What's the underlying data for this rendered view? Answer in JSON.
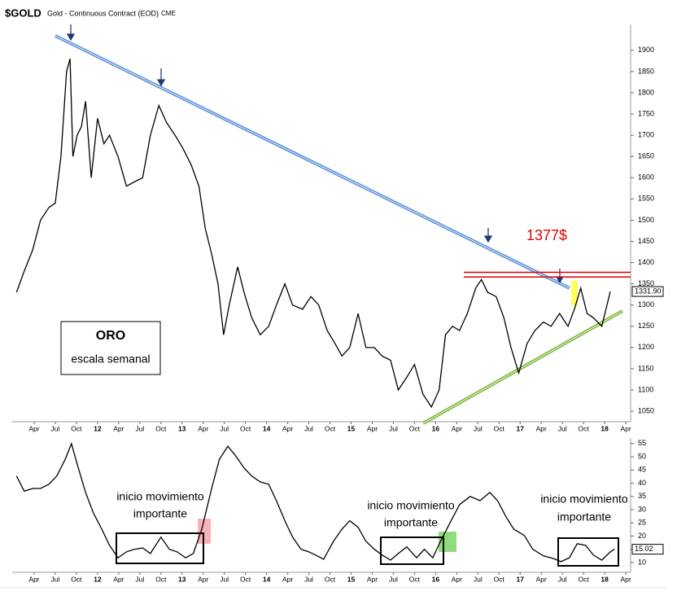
{
  "chart_data": [
    {
      "type": "line",
      "title": "$GOLD",
      "subtitle": "Gold - Continuous Contract (EOD)",
      "exchange": "CME",
      "x": [
        0.5,
        1.6,
        2.8,
        3.9,
        5.1,
        6.0,
        6.8,
        7.6,
        8.1,
        8.5,
        9.1,
        9.7,
        10.3,
        11.1,
        12.0,
        12.9,
        13.7,
        14.9,
        16.1,
        17.2,
        18.4,
        19.5,
        20.7,
        21.8,
        23.0,
        24.1,
        25.3,
        26.4,
        27.3,
        28.2,
        29.1,
        29.9,
        30.7,
        31.9,
        32.8,
        33.9,
        35.1,
        36.3,
        37.4,
        38.6,
        39.7,
        41.1,
        42.3,
        43.4,
        44.6,
        45.7,
        46.7,
        47.8,
        49.0,
        50.1,
        51.3,
        52.4,
        53.6,
        54.7,
        55.9,
        57.0,
        58.2,
        59.4,
        60.5,
        61.4,
        62.4,
        63.4,
        64.5,
        65.7,
        66.5,
        67.4,
        68.6,
        69.7,
        70.7,
        71.8,
        73.0,
        74.1,
        75.3,
        76.4,
        77.6,
        78.8,
        79.7,
        80.6,
        81.5,
        82.4,
        83.6,
        84.8
      ],
      "values": [
        1330,
        1380,
        1430,
        1500,
        1530,
        1540,
        1650,
        1850,
        1880,
        1650,
        1700,
        1720,
        1780,
        1600,
        1740,
        1680,
        1700,
        1650,
        1580,
        1590,
        1600,
        1700,
        1770,
        1730,
        1700,
        1670,
        1630,
        1580,
        1480,
        1420,
        1350,
        1230,
        1300,
        1390,
        1330,
        1270,
        1230,
        1250,
        1300,
        1350,
        1300,
        1290,
        1320,
        1300,
        1240,
        1210,
        1180,
        1200,
        1280,
        1200,
        1200,
        1180,
        1170,
        1100,
        1130,
        1160,
        1090,
        1060,
        1100,
        1230,
        1250,
        1240,
        1280,
        1340,
        1360,
        1330,
        1320,
        1270,
        1200,
        1140,
        1210,
        1240,
        1260,
        1250,
        1280,
        1250,
        1290,
        1340,
        1280,
        1270,
        1250,
        1331.9
      ],
      "color": "#000000",
      "last_label": "1331.90",
      "levels": [
        1377,
        1366
      ],
      "level_color": "#e00000",
      "annotation": "1377$",
      "box_title": "ORO",
      "box_subtitle": "escala semanal",
      "xlim": [
        0,
        87.8
      ],
      "ylim": [
        1031,
        1961
      ],
      "yticks": [
        1050,
        1100,
        1150,
        1200,
        1250,
        1300,
        1350,
        1400,
        1450,
        1500,
        1550,
        1600,
        1650,
        1700,
        1750,
        1800,
        1850,
        1900
      ],
      "xticks": [
        {
          "value": 3,
          "label": "Apr"
        },
        {
          "value": 6,
          "label": "Jul"
        },
        {
          "value": 9,
          "label": "Oct"
        },
        {
          "value": 12,
          "label": "12"
        },
        {
          "value": 15,
          "label": "Apr"
        },
        {
          "value": 18,
          "label": "Jul"
        },
        {
          "value": 21,
          "label": "Oct"
        },
        {
          "value": 24,
          "label": "13"
        },
        {
          "value": 27,
          "label": "Apr"
        },
        {
          "value": 30,
          "label": "Jul"
        },
        {
          "value": 33,
          "label": "Oct"
        },
        {
          "value": 36,
          "label": "14"
        },
        {
          "value": 39,
          "label": "Apr"
        },
        {
          "value": 42,
          "label": "Jul"
        },
        {
          "value": 45,
          "label": "Oct"
        },
        {
          "value": 48,
          "label": "15"
        },
        {
          "value": 51,
          "label": "Apr"
        },
        {
          "value": 54,
          "label": "Jul"
        },
        {
          "value": 57,
          "label": "Oct"
        },
        {
          "value": 60,
          "label": "16"
        },
        {
          "value": 63,
          "label": "Apr"
        },
        {
          "value": 66,
          "label": "Jul"
        },
        {
          "value": 69,
          "label": "Oct"
        },
        {
          "value": 72,
          "label": "17"
        },
        {
          "value": 75,
          "label": "Apr"
        },
        {
          "value": 78,
          "label": "Jul"
        },
        {
          "value": 81,
          "label": "Oct"
        },
        {
          "value": 84,
          "label": "18"
        },
        {
          "value": 87,
          "label": "Apr"
        }
      ]
    },
    {
      "type": "line",
      "x": [
        0.5,
        1.6,
        2.8,
        3.9,
        5.1,
        6.2,
        7.4,
        8.3,
        9.1,
        10.3,
        11.4,
        12.6,
        13.7,
        14.9,
        16.1,
        17.2,
        18.4,
        19.5,
        21.0,
        22.2,
        23.3,
        24.5,
        25.6,
        26.8,
        28.2,
        29.3,
        30.5,
        31.6,
        32.8,
        33.9,
        35.1,
        36.3,
        37.4,
        38.6,
        39.7,
        40.9,
        42.0,
        43.2,
        44.1,
        45.5,
        46.7,
        47.8,
        49.0,
        50.1,
        51.3,
        52.4,
        53.6,
        54.7,
        55.9,
        57.3,
        58.4,
        59.6,
        60.7,
        62.2,
        63.4,
        64.9,
        66.3,
        67.7,
        68.8,
        70.0,
        71.1,
        72.6,
        73.8,
        75.3,
        76.7,
        77.8,
        79.0,
        80.1,
        81.3,
        82.4,
        83.6,
        84.8,
        85.4
      ],
      "values": [
        42.7,
        37,
        38,
        38,
        39.6,
        42.7,
        49,
        55,
        47.3,
        36.5,
        28.8,
        22.6,
        16.5,
        11.8,
        14,
        15,
        15.5,
        13.4,
        19.6,
        15,
        14,
        11.8,
        13.4,
        22.6,
        38,
        49,
        54,
        50.4,
        45.8,
        42.7,
        40.5,
        39.6,
        33.4,
        25.8,
        19.6,
        15,
        14,
        12.5,
        11.2,
        18,
        22.6,
        25.8,
        23.3,
        18,
        15,
        12.8,
        10.9,
        13.4,
        15.9,
        11.8,
        15,
        11.8,
        18,
        25.8,
        31.9,
        35,
        33.4,
        36.5,
        33.4,
        27.3,
        22.6,
        20.2,
        15,
        12.5,
        11.5,
        10.3,
        11.8,
        17.1,
        16.5,
        12.8,
        10.9,
        14,
        15.02
      ],
      "color": "#000000",
      "annotations": [
        [
          "inicio movimiento",
          "importante"
        ],
        [
          "inicio movimiento",
          "importante"
        ],
        [
          "inicio movimiento",
          "importante"
        ]
      ],
      "xlim": [
        0,
        87.8
      ],
      "ylim": [
        7.2,
        56.5
      ],
      "yticks": [
        10,
        15,
        20,
        25,
        30,
        35,
        40,
        45,
        50,
        55
      ],
      "xticks": [
        {
          "value": 3,
          "label": "Apr"
        },
        {
          "value": 6,
          "label": "Jul"
        },
        {
          "value": 9,
          "label": "Oct"
        },
        {
          "value": 12,
          "label": "12"
        },
        {
          "value": 15,
          "label": "Apr"
        },
        {
          "value": 18,
          "label": "Jul"
        },
        {
          "value": 21,
          "label": "Oct"
        },
        {
          "value": 24,
          "label": "13"
        },
        {
          "value": 27,
          "label": "Apr"
        },
        {
          "value": 30,
          "label": "Jul"
        },
        {
          "value": 33,
          "label": "Oct"
        },
        {
          "value": 36,
          "label": "14"
        },
        {
          "value": 39,
          "label": "Apr"
        },
        {
          "value": 42,
          "label": "Jul"
        },
        {
          "value": 45,
          "label": "Oct"
        },
        {
          "value": 48,
          "label": "15"
        },
        {
          "value": 51,
          "label": "Apr"
        },
        {
          "value": 54,
          "label": "Jul"
        },
        {
          "value": 57,
          "label": "Oct"
        },
        {
          "value": 60,
          "label": "16"
        },
        {
          "value": 63,
          "label": "Apr"
        },
        {
          "value": 66,
          "label": "Jul"
        },
        {
          "value": 69,
          "label": "Oct"
        },
        {
          "value": 72,
          "label": "17"
        },
        {
          "value": 75,
          "label": "Apr"
        },
        {
          "value": 78,
          "label": "Jul"
        },
        {
          "value": 81,
          "label": "Oct"
        },
        {
          "value": 84,
          "label": "18"
        },
        {
          "value": 87,
          "label": "Apr"
        }
      ]
    }
  ]
}
